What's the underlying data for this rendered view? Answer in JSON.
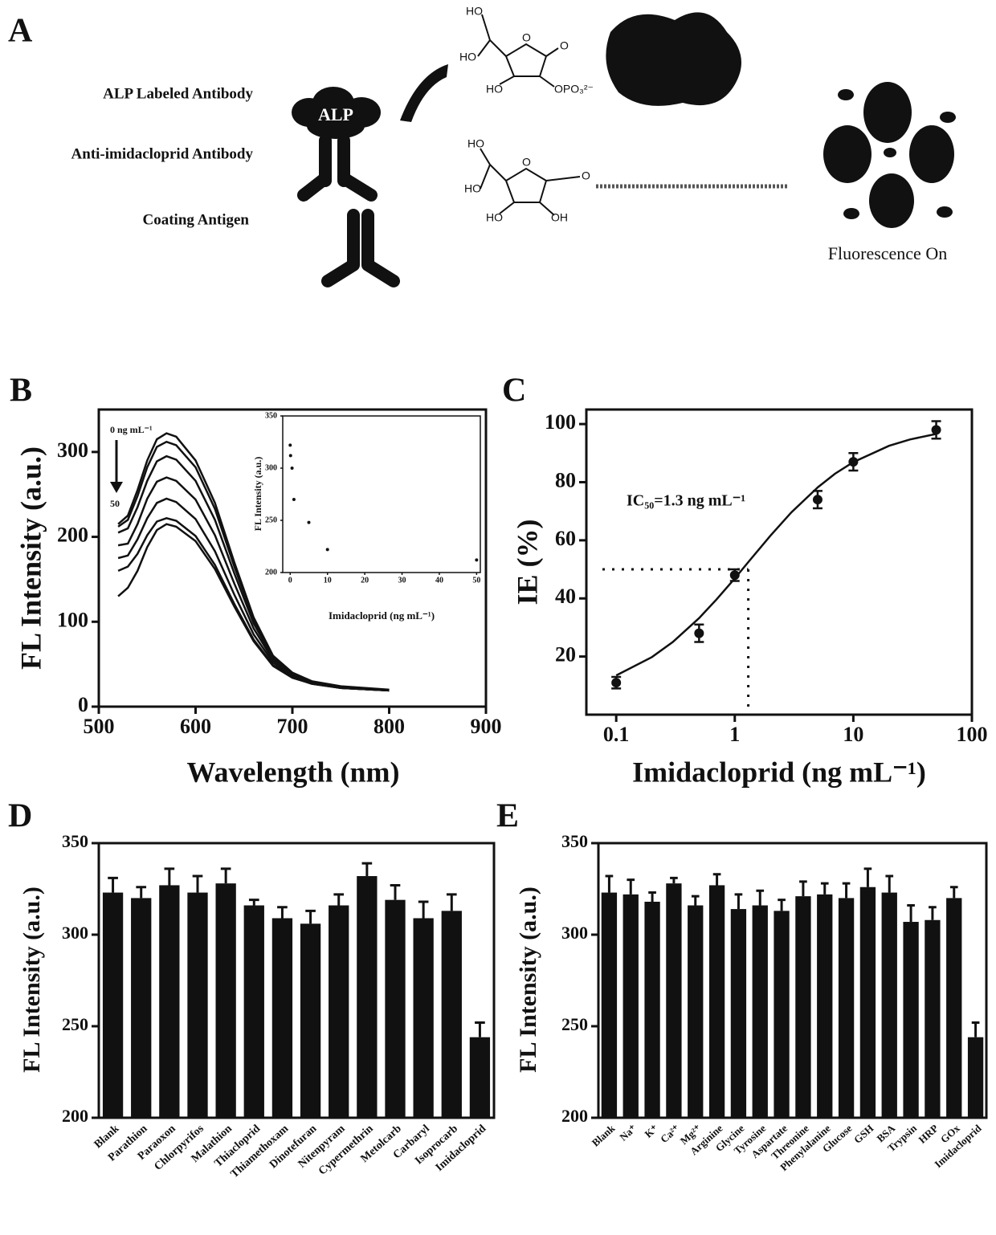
{
  "diagram": {
    "label": "A",
    "texts": [
      "ALP Labeled Antibody",
      "Anti-imidacloprid Antibody",
      "Coating Antigen",
      "ALP",
      "Fluorescence On"
    ],
    "molecule_1": [
      "HO",
      "HO",
      "HO",
      "O",
      "O",
      "OPO₃²⁻"
    ],
    "molecule_2": [
      "HO",
      "HO",
      "HO",
      "OH",
      "O",
      "O"
    ]
  },
  "chart_data": [
    {
      "type": "line",
      "label": "B",
      "xlabel": "Wavelength (nm)",
      "ylabel": "FL Intensity (a.u.)",
      "xlim": [
        500,
        900
      ],
      "xticks": [
        500,
        600,
        700,
        800,
        900
      ],
      "ylim": [
        0,
        350
      ],
      "yticks": [
        0,
        100,
        200,
        300
      ],
      "x": [
        520,
        530,
        540,
        550,
        560,
        570,
        580,
        600,
        620,
        640,
        660,
        680,
        700,
        720,
        750,
        800
      ],
      "series": [
        {
          "color": "#111111",
          "values": [
            215,
            225,
            255,
            290,
            315,
            322,
            318,
            290,
            240,
            170,
            105,
            60,
            40,
            30,
            24,
            20
          ]
        },
        {
          "color": "#111111",
          "values": [
            212,
            220,
            248,
            282,
            306,
            312,
            308,
            282,
            233,
            165,
            102,
            58,
            39,
            29,
            23,
            19
          ]
        },
        {
          "color": "#111111",
          "values": [
            205,
            210,
            235,
            266,
            289,
            295,
            291,
            266,
            220,
            157,
            98,
            57,
            38,
            29,
            23,
            19
          ]
        },
        {
          "color": "#111111",
          "values": [
            190,
            192,
            215,
            245,
            265,
            270,
            266,
            244,
            202,
            145,
            92,
            55,
            37,
            28,
            22,
            19
          ]
        },
        {
          "color": "#111111",
          "values": [
            175,
            178,
            197,
            222,
            240,
            245,
            241,
            221,
            183,
            132,
            85,
            52,
            36,
            28,
            22,
            19
          ]
        },
        {
          "color": "#111111",
          "values": [
            160,
            165,
            180,
            202,
            218,
            222,
            219,
            201,
            167,
            121,
            79,
            49,
            35,
            27,
            22,
            19
          ]
        },
        {
          "color": "#111111",
          "values": [
            130,
            140,
            160,
            188,
            208,
            215,
            212,
            195,
            162,
            118,
            77,
            48,
            34,
            27,
            22,
            19
          ]
        }
      ],
      "annotations": [
        "0 ng mL⁻¹",
        "50"
      ],
      "inset": {
        "type": "scatter",
        "xlabel": "Imidacloprid (ng mL⁻¹)",
        "ylabel": "FL Intensity (a.u.)",
        "x": [
          0,
          0.1,
          0.5,
          1,
          5,
          10,
          50
        ],
        "values": [
          322,
          312,
          300,
          270,
          248,
          222,
          212
        ],
        "xlim": [
          -2,
          51
        ],
        "xticks": [
          0,
          10,
          20,
          30,
          40,
          50
        ],
        "ylim": [
          200,
          350
        ],
        "yticks": [
          200,
          250,
          300,
          350
        ]
      }
    },
    {
      "type": "scatter",
      "label": "C",
      "xlabel": "Imidacloprid (ng mL⁻¹)",
      "ylabel": "IE (%)",
      "xscale": "log",
      "xlim": [
        0.056,
        100
      ],
      "xticks": [
        0.1,
        1,
        10,
        100
      ],
      "ylim": [
        0,
        105
      ],
      "yticks": [
        20,
        40,
        60,
        80,
        100
      ],
      "x": [
        0.1,
        0.5,
        1,
        5,
        10,
        50
      ],
      "values": [
        11,
        28,
        48,
        74,
        87,
        98
      ],
      "errors": [
        2,
        3,
        2,
        3,
        3,
        3
      ],
      "fit": {
        "x": [
          0.1,
          0.2,
          0.3,
          0.5,
          0.7,
          1,
          1.3,
          2,
          3,
          5,
          7,
          10,
          20,
          30,
          50
        ],
        "values": [
          13.5,
          19.8,
          25.0,
          33.2,
          39.6,
          46.9,
          52.5,
          61.6,
          69.6,
          78.2,
          82.9,
          86.9,
          92.5,
          94.7,
          96.6
        ]
      },
      "reference": {
        "x": 1.3,
        "y": 50
      },
      "annotation": "IC₅₀=1.3 ng mL⁻¹"
    },
    {
      "type": "bar",
      "label": "D",
      "ylabel": "FL Intensity (a.u.)",
      "color": "#111111",
      "ylim": [
        200,
        350
      ],
      "yticks": [
        200,
        250,
        300,
        350
      ],
      "categories": [
        "Blank",
        "Parathion",
        "Paraoxon",
        "Chlorpyrifos",
        "Malathion",
        "Thiacloprid",
        "Thiamethoxam",
        "Dinotefuran",
        "Nitenpyram",
        "Cypermethrin",
        "Metolcarb",
        "Carbaryl",
        "Isoprocarb",
        "Imidacloprid"
      ],
      "values": [
        323,
        320,
        327,
        323,
        328,
        316,
        309,
        306,
        316,
        332,
        319,
        309,
        313,
        244
      ],
      "errors": [
        8,
        6,
        9,
        9,
        8,
        3,
        6,
        7,
        6,
        7,
        8,
        9,
        9,
        8
      ]
    },
    {
      "type": "bar",
      "label": "E",
      "ylabel": "FL Intensity (a.u.)",
      "color": "#111111",
      "ylim": [
        200,
        350
      ],
      "yticks": [
        200,
        250,
        300,
        350
      ],
      "categories": [
        "Blank",
        "Na⁺",
        "K⁺",
        "Ca²⁺",
        "Mg²⁺",
        "Arginine",
        "Glycine",
        "Tyrosine",
        "Aspartate",
        "Threonine",
        "Phenylalanine",
        "Glucose",
        "GSH",
        "BSA",
        "Trypsin",
        "HRP",
        "GOx",
        "Imidacloprid"
      ],
      "values": [
        323,
        322,
        318,
        328,
        316,
        327,
        314,
        316,
        313,
        321,
        322,
        320,
        326,
        323,
        307,
        308,
        320,
        244
      ],
      "errors": [
        9,
        8,
        5,
        3,
        5,
        6,
        8,
        8,
        6,
        8,
        6,
        8,
        10,
        9,
        9,
        7,
        6,
        8
      ]
    }
  ]
}
